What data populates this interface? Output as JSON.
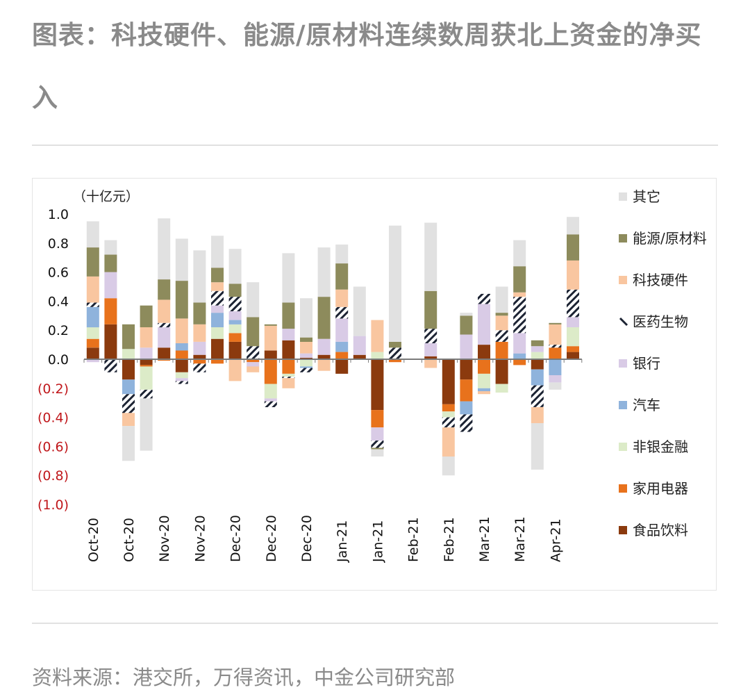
{
  "page": {
    "title": "图表：科技硬件、能源/原材料连续数周获北上资金的净买入",
    "source": "资料来源：港交所，万得资讯，中金公司研究部"
  },
  "chart_data": {
    "type": "bar",
    "stacked": true,
    "unit_label": "（十亿元）",
    "ylim": [
      -1.0,
      1.0
    ],
    "y_ticks": [
      "1.0",
      "0.8",
      "0.6",
      "0.4",
      "0.2",
      "0.0",
      "(0.2)",
      "(0.4)",
      "(0.6)",
      "(0.8)",
      "(1.0)"
    ],
    "negative_tick_color": "#c0171b",
    "grid": false,
    "legend_position": "right",
    "categories": [
      "w1",
      "w2",
      "w3",
      "w4",
      "w5",
      "w6",
      "w7",
      "w8",
      "w9",
      "w10",
      "w11",
      "w12",
      "w13",
      "w14",
      "w15",
      "w16",
      "w17",
      "w18",
      "w19",
      "w20",
      "w21",
      "w22",
      "w23",
      "w24",
      "w25",
      "w26",
      "w27",
      "w28"
    ],
    "x_tick_labels": [
      "Oct-20",
      "Oct-20",
      "Nov-20",
      "Nov-20",
      "Dec-20",
      "Dec-20",
      "Dec-20",
      "Jan-21",
      "Jan-21",
      "Feb-21",
      "Feb-21",
      "Mar-21",
      "Mar-21",
      "Apr-21"
    ],
    "x_tick_every": 2,
    "series": [
      {
        "name": "食品饮料",
        "color": "#8b3a0e",
        "values": [
          0.08,
          0.24,
          -0.14,
          -0.04,
          0.08,
          -0.09,
          0.03,
          0.14,
          0.12,
          0.0,
          0.06,
          0.13,
          0.01,
          0.03,
          -0.1,
          0.03,
          -0.35,
          0.0,
          0.0,
          0.02,
          -0.31,
          -0.14,
          0.1,
          -0.17,
          0.0,
          -0.07,
          0.0,
          0.05
        ]
      },
      {
        "name": "家用电器",
        "color": "#e8721c",
        "values": [
          0.06,
          0.18,
          0.0,
          -0.01,
          -0.01,
          0.06,
          -0.03,
          -0.03,
          0.06,
          -0.02,
          -0.17,
          -0.1,
          0.0,
          0.0,
          0.05,
          0.0,
          -0.12,
          -0.02,
          0.0,
          0.0,
          -0.05,
          -0.15,
          -0.1,
          0.12,
          -0.04,
          0.0,
          0.08,
          0.04
        ]
      },
      {
        "name": "非银金融",
        "color": "#dcebc8",
        "values": [
          0.08,
          0.0,
          0.07,
          -0.16,
          0.0,
          -0.04,
          0.0,
          0.08,
          0.06,
          0.0,
          -0.1,
          -0.02,
          -0.05,
          0.0,
          0.0,
          0.0,
          0.05,
          0.0,
          0.0,
          0.0,
          -0.04,
          0.0,
          -0.1,
          -0.06,
          0.0,
          0.05,
          0.0,
          0.13
        ]
      },
      {
        "name": "汽车",
        "color": "#8fb3dc",
        "values": [
          0.14,
          0.0,
          -0.1,
          0.0,
          0.0,
          0.05,
          0.0,
          0.1,
          0.03,
          0.0,
          0.0,
          0.0,
          -0.01,
          0.0,
          0.07,
          0.0,
          0.0,
          0.0,
          0.0,
          0.0,
          0.0,
          -0.09,
          -0.02,
          0.0,
          0.04,
          -0.11,
          -0.11,
          0.0
        ]
      },
      {
        "name": "银行",
        "color": "#d9cbe6",
        "values": [
          -0.02,
          0.18,
          0.0,
          0.08,
          0.14,
          -0.02,
          0.09,
          0.05,
          0.06,
          -0.03,
          -0.02,
          0.08,
          0.03,
          0.11,
          0.16,
          0.13,
          -0.09,
          0.0,
          0.0,
          0.09,
          0.0,
          0.17,
          0.28,
          0.0,
          0.14,
          0.04,
          -0.05,
          0.07
        ]
      },
      {
        "name": "医药生物",
        "color": "#ffffff",
        "hatched": true,
        "values": [
          0.03,
          -0.09,
          -0.13,
          -0.06,
          0.03,
          -0.02,
          -0.06,
          0.1,
          0.1,
          0.09,
          -0.04,
          -0.01,
          -0.03,
          0.0,
          0.08,
          0.0,
          -0.05,
          0.08,
          0.0,
          0.1,
          -0.07,
          -0.12,
          0.07,
          0.08,
          0.25,
          -0.15,
          0.02,
          0.19
        ]
      },
      {
        "name": "科技硬件",
        "color": "#f9c6a0",
        "values": [
          0.18,
          0.0,
          -0.09,
          0.14,
          0.16,
          0.17,
          0.12,
          0.06,
          -0.15,
          -0.04,
          0.17,
          -0.07,
          0.08,
          -0.08,
          0.12,
          0.0,
          0.22,
          0.0,
          0.0,
          -0.06,
          -0.2,
          0.0,
          -0.02,
          0.1,
          0.03,
          -0.11,
          0.14,
          0.2
        ]
      },
      {
        "name": "能源/原材料",
        "color": "#8d8b5c",
        "values": [
          0.2,
          0.12,
          0.17,
          0.15,
          0.14,
          0.26,
          0.15,
          0.1,
          0.09,
          0.2,
          0.01,
          0.18,
          0.03,
          0.29,
          0.18,
          0.0,
          -0.01,
          0.04,
          0.0,
          0.26,
          0.0,
          0.13,
          0.0,
          0.02,
          0.18,
          0.04,
          0.01,
          0.18
        ]
      },
      {
        "name": "其它",
        "color": "#e1e1e1",
        "values": [
          0.18,
          0.1,
          -0.24,
          -0.36,
          0.42,
          0.29,
          0.36,
          0.22,
          0.24,
          0.24,
          0.0,
          0.34,
          0.27,
          0.34,
          0.13,
          0.34,
          -0.05,
          0.8,
          0.0,
          0.47,
          -0.13,
          0.02,
          0.0,
          0.18,
          0.18,
          -0.32,
          -0.05,
          0.12
        ]
      }
    ]
  }
}
